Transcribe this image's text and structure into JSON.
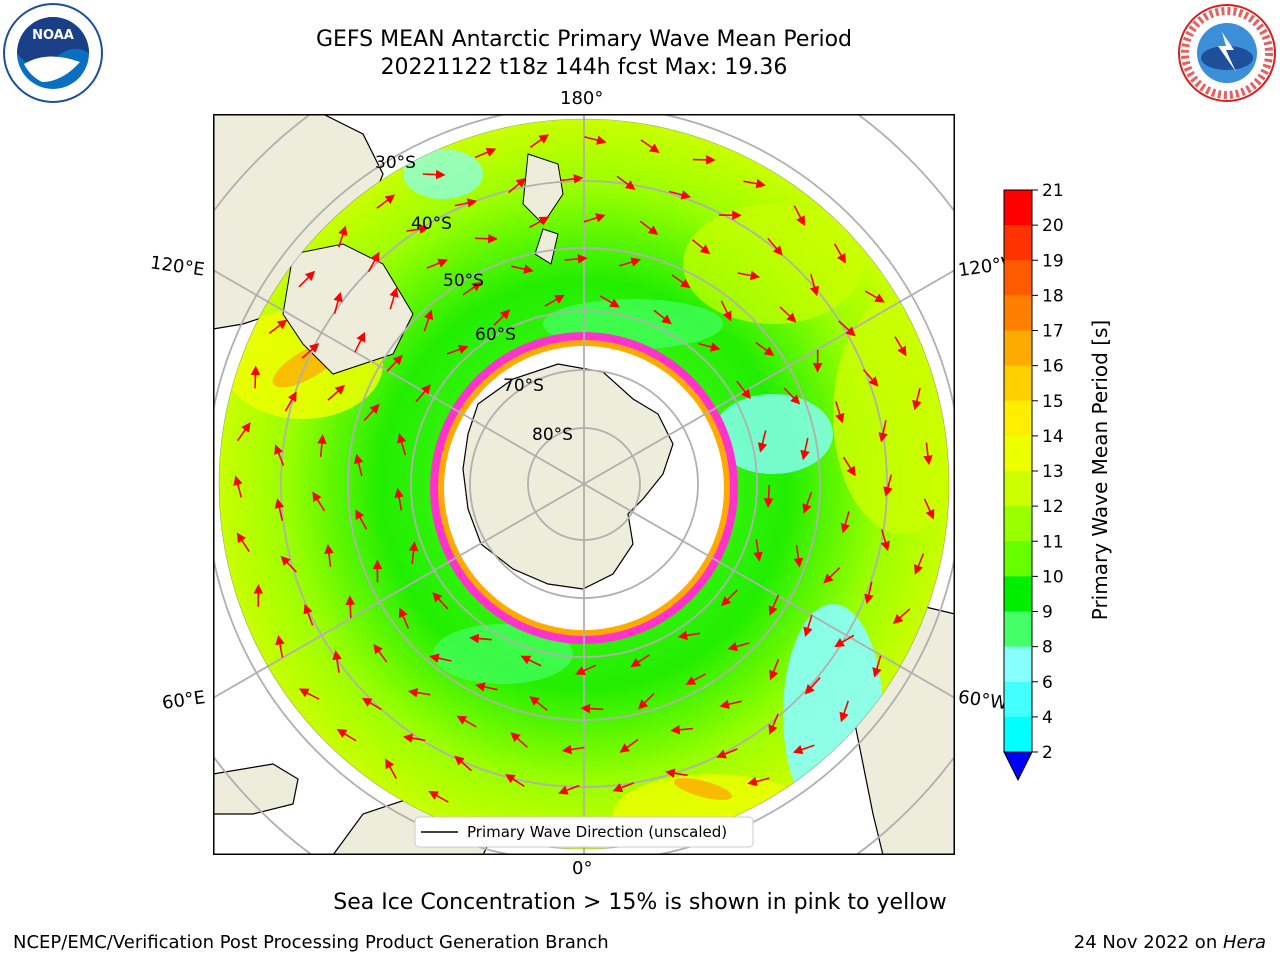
{
  "header": {
    "title_line1": "GEFS MEAN Antarctic Primary Wave Mean Period",
    "title_line2": "20221122 t18z 144h fcst   Max: 19.36"
  },
  "logos": {
    "left": "noaa-logo",
    "right": "national-weather-service-logo"
  },
  "map": {
    "projection": "south-polar-stereographic",
    "longitude_labels": [
      "180°",
      "120°E",
      "120°W",
      "60°E",
      "60°W",
      "0°"
    ],
    "latitude_labels": [
      "30°S",
      "40°S",
      "50°S",
      "60°S",
      "70°S",
      "80°S"
    ],
    "legend_label": "Primary Wave Direction (unscaled)",
    "colors": {
      "land": "#eeecdb",
      "arrow": "#ff0000",
      "sea_ice_edge": "#ff33cc",
      "gridline": "#b0b0b0"
    }
  },
  "colorbar": {
    "label": "Primary Wave Mean Period [s]",
    "ticks": [
      "21",
      "20",
      "19",
      "18",
      "17",
      "16",
      "15",
      "14",
      "13",
      "12",
      "11",
      "10",
      "9",
      "8",
      "6",
      "4",
      "2"
    ],
    "colors_top_to_bottom": [
      "#ff0000",
      "#ff3300",
      "#ff5a00",
      "#ff8000",
      "#ffaa00",
      "#ffd000",
      "#ffee00",
      "#eeff00",
      "#ccff00",
      "#99ff00",
      "#66ff00",
      "#00ee00",
      "#44ff66",
      "#88ffff",
      "#44ffff",
      "#00ffff",
      "#0088ff",
      "#0000ff"
    ]
  },
  "notes": {
    "sea_ice": "Sea Ice Concentration > 15% is shown in pink to yellow"
  },
  "footer": {
    "left": "NCEP/EMC/Verification Post Processing Product Generation Branch",
    "right_date": "24 Nov 2022 on ",
    "right_host": "Hera"
  }
}
